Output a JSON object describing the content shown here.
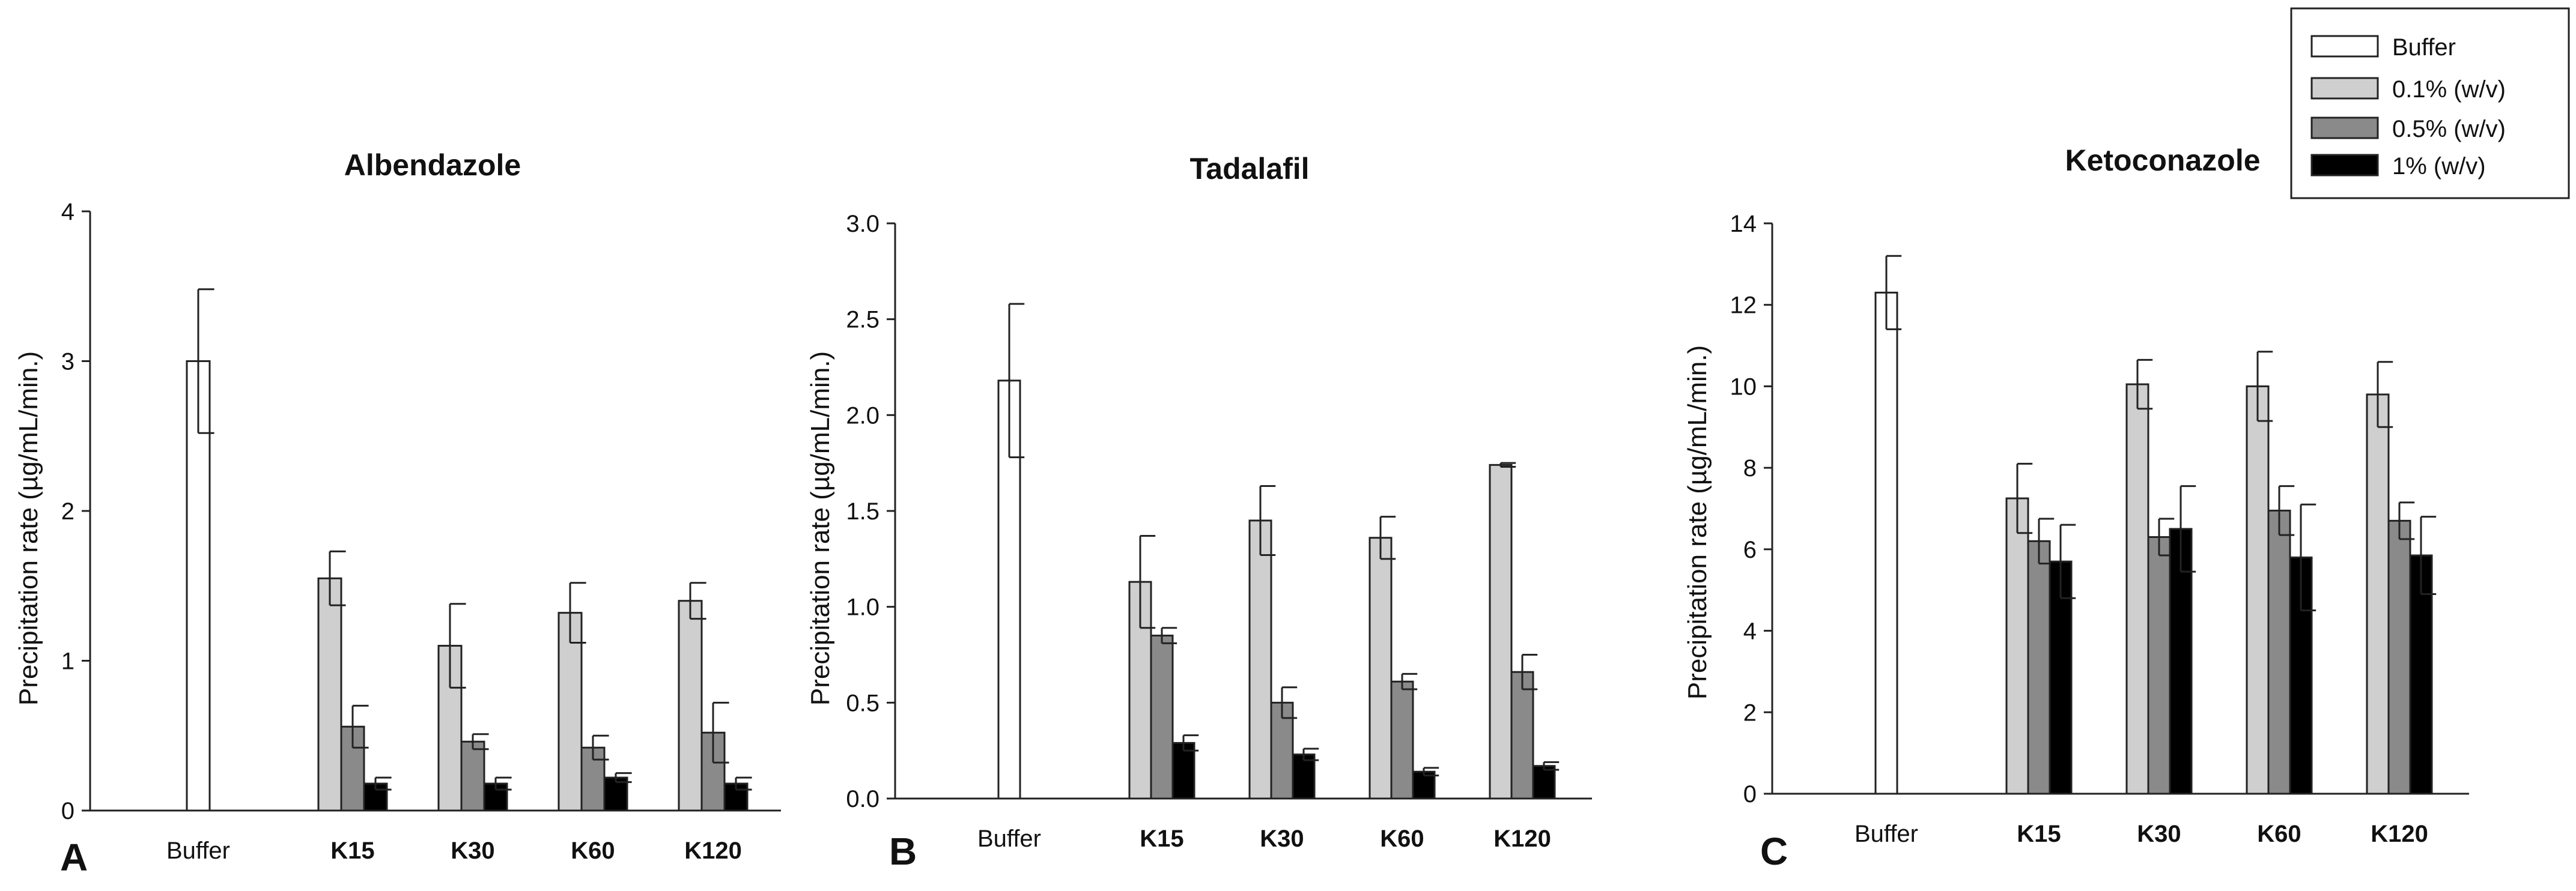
{
  "chart_data": [
    {
      "type": "bar",
      "panel": "A",
      "title": "Albendazole",
      "xlabel": "",
      "ylabel": "Precipitation rate (µg/mL/min.)",
      "ylim": [
        0,
        4
      ],
      "yticks": [
        "0",
        "1",
        "2",
        "3",
        "4"
      ],
      "categories": [
        "Buffer",
        "K15",
        "K30",
        "K60",
        "K120"
      ],
      "series": [
        {
          "name": "Buffer",
          "values": [
            3.0,
            null,
            null,
            null,
            null
          ],
          "errors": [
            0.48,
            null,
            null,
            null,
            null
          ]
        },
        {
          "name": "0.1% (w/v)",
          "values": [
            null,
            1.55,
            1.1,
            1.32,
            1.4
          ],
          "errors": [
            null,
            0.18,
            0.28,
            0.2,
            0.12
          ]
        },
        {
          "name": "0.5% (w/v)",
          "values": [
            null,
            0.56,
            0.46,
            0.42,
            0.52
          ],
          "errors": [
            null,
            0.14,
            0.05,
            0.08,
            0.2
          ]
        },
        {
          "name": "1% (w/v)",
          "values": [
            null,
            0.18,
            0.18,
            0.22,
            0.18
          ],
          "errors": [
            null,
            0.04,
            0.04,
            0.03,
            0.04
          ]
        }
      ]
    },
    {
      "type": "bar",
      "panel": "B",
      "title": "Tadalafil",
      "xlabel": "",
      "ylabel": "Precipitation rate (µg/mL/min.)",
      "ylim": [
        0,
        3
      ],
      "yticks": [
        "0.0",
        "0.5",
        "1.0",
        "1.5",
        "2.0",
        "2.5",
        "3.0"
      ],
      "categories": [
        "Buffer",
        "K15",
        "K30",
        "K60",
        "K120"
      ],
      "series": [
        {
          "name": "Buffer",
          "values": [
            2.18,
            null,
            null,
            null,
            null
          ],
          "errors": [
            0.4,
            null,
            null,
            null,
            null
          ]
        },
        {
          "name": "0.1% (w/v)",
          "values": [
            null,
            1.13,
            1.45,
            1.36,
            1.74
          ],
          "errors": [
            null,
            0.24,
            0.18,
            0.11,
            0.01
          ]
        },
        {
          "name": "0.5% (w/v)",
          "values": [
            null,
            0.85,
            0.5,
            0.61,
            0.66
          ],
          "errors": [
            null,
            0.04,
            0.08,
            0.04,
            0.09
          ]
        },
        {
          "name": "1% (w/v)",
          "values": [
            null,
            0.29,
            0.23,
            0.14,
            0.17
          ],
          "errors": [
            null,
            0.04,
            0.03,
            0.02,
            0.02
          ]
        }
      ]
    },
    {
      "type": "bar",
      "panel": "C",
      "title": "Ketoconazole",
      "xlabel": "",
      "ylabel": "Precipitation rate (µg/mL/min.)",
      "ylim": [
        0,
        14
      ],
      "yticks": [
        "0",
        "2",
        "4",
        "6",
        "8",
        "10",
        "12",
        "14"
      ],
      "categories": [
        "Buffer",
        "K15",
        "K30",
        "K60",
        "K120"
      ],
      "series": [
        {
          "name": "Buffer",
          "values": [
            12.3,
            null,
            null,
            null,
            null
          ],
          "errors": [
            0.9,
            null,
            null,
            null,
            null
          ]
        },
        {
          "name": "0.1% (w/v)",
          "values": [
            null,
            7.25,
            10.05,
            10.0,
            9.8
          ],
          "errors": [
            null,
            0.85,
            0.6,
            0.85,
            0.8
          ]
        },
        {
          "name": "0.5% (w/v)",
          "values": [
            null,
            6.2,
            6.3,
            6.95,
            6.7
          ],
          "errors": [
            null,
            0.55,
            0.45,
            0.6,
            0.45
          ]
        },
        {
          "name": "1% (w/v)",
          "values": [
            null,
            5.7,
            6.5,
            5.8,
            5.85
          ],
          "errors": [
            null,
            0.9,
            1.05,
            1.3,
            0.95
          ]
        }
      ]
    }
  ],
  "legend": {
    "placement": "top-right",
    "entries": [
      {
        "label": "Buffer",
        "color": "#ffffff"
      },
      {
        "label": "0.1% (w/v)",
        "color": "#cfcfcf"
      },
      {
        "label": "0.5% (w/v)",
        "color": "#8a8a8a"
      },
      {
        "label": "1% (w/v)",
        "color": "#000000"
      }
    ]
  },
  "colors": {
    "buffer": "#ffffff",
    "low": "#cfcfcf",
    "mid": "#8a8a8a",
    "high": "#000000",
    "axis": "#222222"
  }
}
